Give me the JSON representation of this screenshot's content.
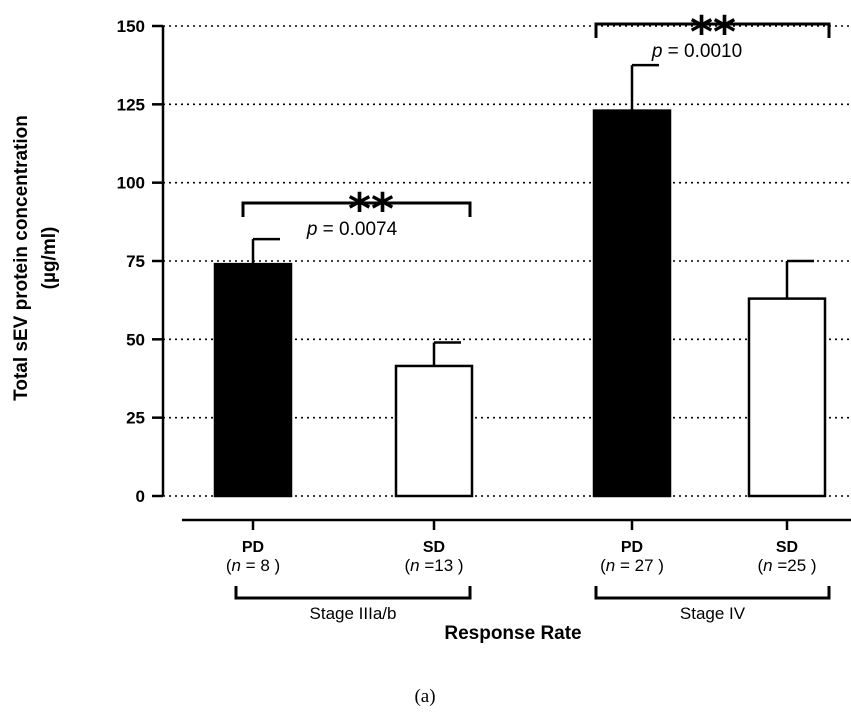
{
  "chart_data": {
    "type": "bar",
    "ylabel_line1": "Total sEV protein concentration",
    "ylabel_line2": "(µg/ml)",
    "xlabel": "Response Rate",
    "ylim": [
      0,
      150
    ],
    "yticks": [
      0,
      25,
      50,
      75,
      100,
      125,
      150
    ],
    "grid": "horizontal dotted",
    "bars": [
      {
        "label": "PD",
        "n_prefix": "(",
        "n_symbol": "n",
        "n_text": " = 8 )",
        "value": 74,
        "error": 8,
        "fill": "#000000",
        "group": 0
      },
      {
        "label": "SD",
        "n_prefix": "(",
        "n_symbol": "n",
        "n_text": " =13 )",
        "value": 41.5,
        "error": 7.5,
        "fill": "#ffffff",
        "group": 0
      },
      {
        "label": "PD",
        "n_prefix": "(",
        "n_symbol": "n",
        "n_text": " = 27 )",
        "value": 123,
        "error": 14.5,
        "fill": "#000000",
        "group": 1
      },
      {
        "label": "SD",
        "n_prefix": "(",
        "n_symbol": "n",
        "n_text": " =25 )",
        "value": 63,
        "error": 12,
        "fill": "#ffffff",
        "group": 1
      }
    ],
    "groups": [
      "Stage IIIa/b",
      "Stage IV"
    ],
    "comparisons": [
      {
        "stars": "**",
        "p_symbol": "p",
        "p_text": " = 0.0074",
        "group": 0
      },
      {
        "stars": "**",
        "p_symbol": "p",
        "p_text": " = 0.0010",
        "group": 1
      }
    ]
  },
  "panel_label": "(a)"
}
